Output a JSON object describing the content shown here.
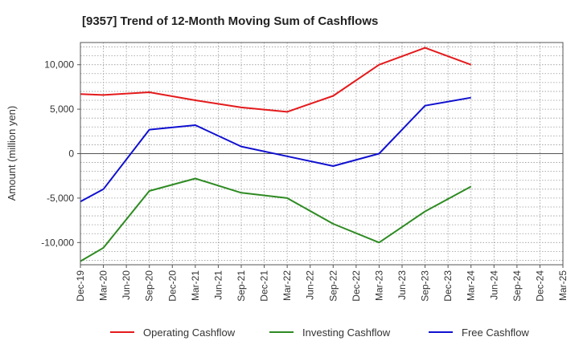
{
  "chart_data": {
    "type": "line",
    "title": "[9357]  Trend of 12-Month Moving Sum of Cashflows",
    "xlabel": "",
    "ylabel": "Amount (million yen)",
    "categories": [
      "Dec-19",
      "Mar-20",
      "Jun-20",
      "Sep-20",
      "Dec-20",
      "Mar-21",
      "Jun-21",
      "Sep-21",
      "Dec-21",
      "Mar-22",
      "Jun-22",
      "Sep-22",
      "Dec-22",
      "Mar-23",
      "Jun-23",
      "Sep-23",
      "Dec-23",
      "Mar-24",
      "Jun-24",
      "Sep-24",
      "Dec-24",
      "Mar-25"
    ],
    "ylim": [
      -12500,
      12500
    ],
    "yticks": [
      -10000,
      -5000,
      0,
      5000,
      10000
    ],
    "ytick_labels": [
      "-10,000",
      "-5,000",
      "0",
      "5,000",
      "10,000"
    ],
    "grid": true,
    "legend_position": "bottom",
    "series": [
      {
        "name": "Operating Cashflow",
        "color": "#e41a1c",
        "values": [
          6700,
          6600,
          null,
          6900,
          null,
          6000,
          null,
          5200,
          null,
          4700,
          null,
          6500,
          null,
          10000,
          null,
          11900,
          null,
          10000,
          null,
          null,
          null,
          null
        ]
      },
      {
        "name": "Investing Cashflow",
        "color": "#2e8b22",
        "values": [
          -12100,
          -10600,
          null,
          -4200,
          null,
          -2800,
          null,
          -4400,
          null,
          -5000,
          null,
          -7900,
          null,
          -10000,
          null,
          -6500,
          null,
          -3700,
          null,
          null,
          null,
          null
        ]
      },
      {
        "name": "Free Cashflow",
        "color": "#1010d0",
        "values": [
          -5400,
          -4000,
          null,
          2700,
          null,
          3200,
          null,
          800,
          null,
          -300,
          null,
          -1400,
          null,
          0,
          null,
          5400,
          null,
          6300,
          null,
          null,
          null,
          null
        ]
      }
    ]
  }
}
